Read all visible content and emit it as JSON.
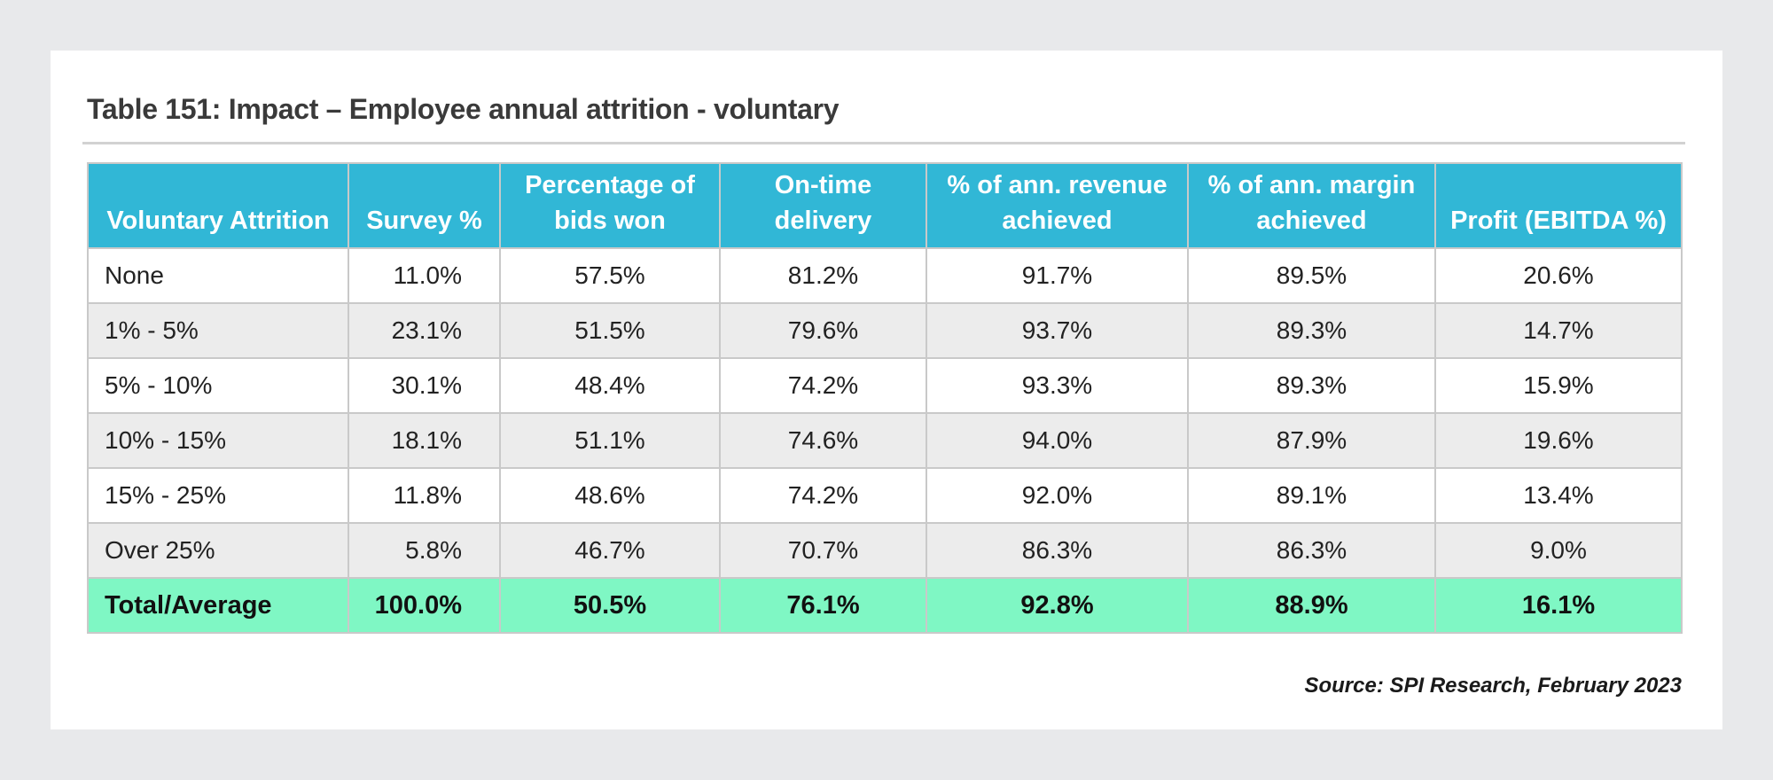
{
  "title": "Table 151:  Impact – Employee annual attrition - voluntary",
  "headers": [
    "Voluntary Attrition",
    "Survey %",
    "Percentage of bids won",
    "On-time delivery",
    "% of ann. revenue achieved",
    "% of ann. margin achieved",
    "Profit (EBITDA %)"
  ],
  "rows": [
    [
      "None",
      "11.0%",
      "57.5%",
      "81.2%",
      "91.7%",
      "89.5%",
      "20.6%"
    ],
    [
      "1% - 5%",
      "23.1%",
      "51.5%",
      "79.6%",
      "93.7%",
      "89.3%",
      "14.7%"
    ],
    [
      "5% - 10%",
      "30.1%",
      "48.4%",
      "74.2%",
      "93.3%",
      "89.3%",
      "15.9%"
    ],
    [
      "10% - 15%",
      "18.1%",
      "51.1%",
      "74.6%",
      "94.0%",
      "87.9%",
      "19.6%"
    ],
    [
      "15% - 25%",
      "11.8%",
      "48.6%",
      "74.2%",
      "92.0%",
      "89.1%",
      "13.4%"
    ],
    [
      "Over 25%",
      "5.8%",
      "46.7%",
      "70.7%",
      "86.3%",
      "86.3%",
      "9.0%"
    ]
  ],
  "total": [
    "Total/Average",
    "100.0%",
    "50.5%",
    "76.1%",
    "92.8%",
    "88.9%",
    "16.1%"
  ],
  "source": "Source: SPI Research, February 2023",
  "colors": {
    "header_bg": "#31b7d6",
    "total_bg": "#7ff7c4",
    "alt_row_bg": "#ececec",
    "page_bg": "#e8e9eb"
  }
}
